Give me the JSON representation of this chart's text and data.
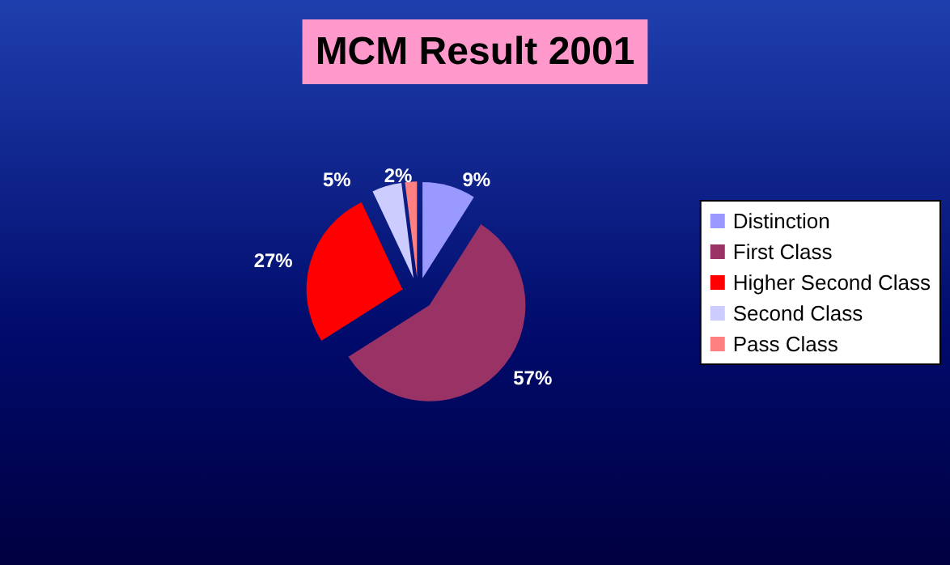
{
  "chart_data": {
    "type": "pie",
    "title": "MCM Result 2001",
    "categories": [
      "Distinction",
      "First Class",
      "Higher Second Class",
      "Second Class",
      "Pass Class"
    ],
    "values": [
      9,
      57,
      27,
      5,
      2
    ],
    "colors": [
      "#9999ff",
      "#993366",
      "#ff0000",
      "#ccccff",
      "#ff8080"
    ],
    "value_labels": [
      "9%",
      "57%",
      "27%",
      "5%",
      "2%"
    ],
    "legend": "right"
  }
}
